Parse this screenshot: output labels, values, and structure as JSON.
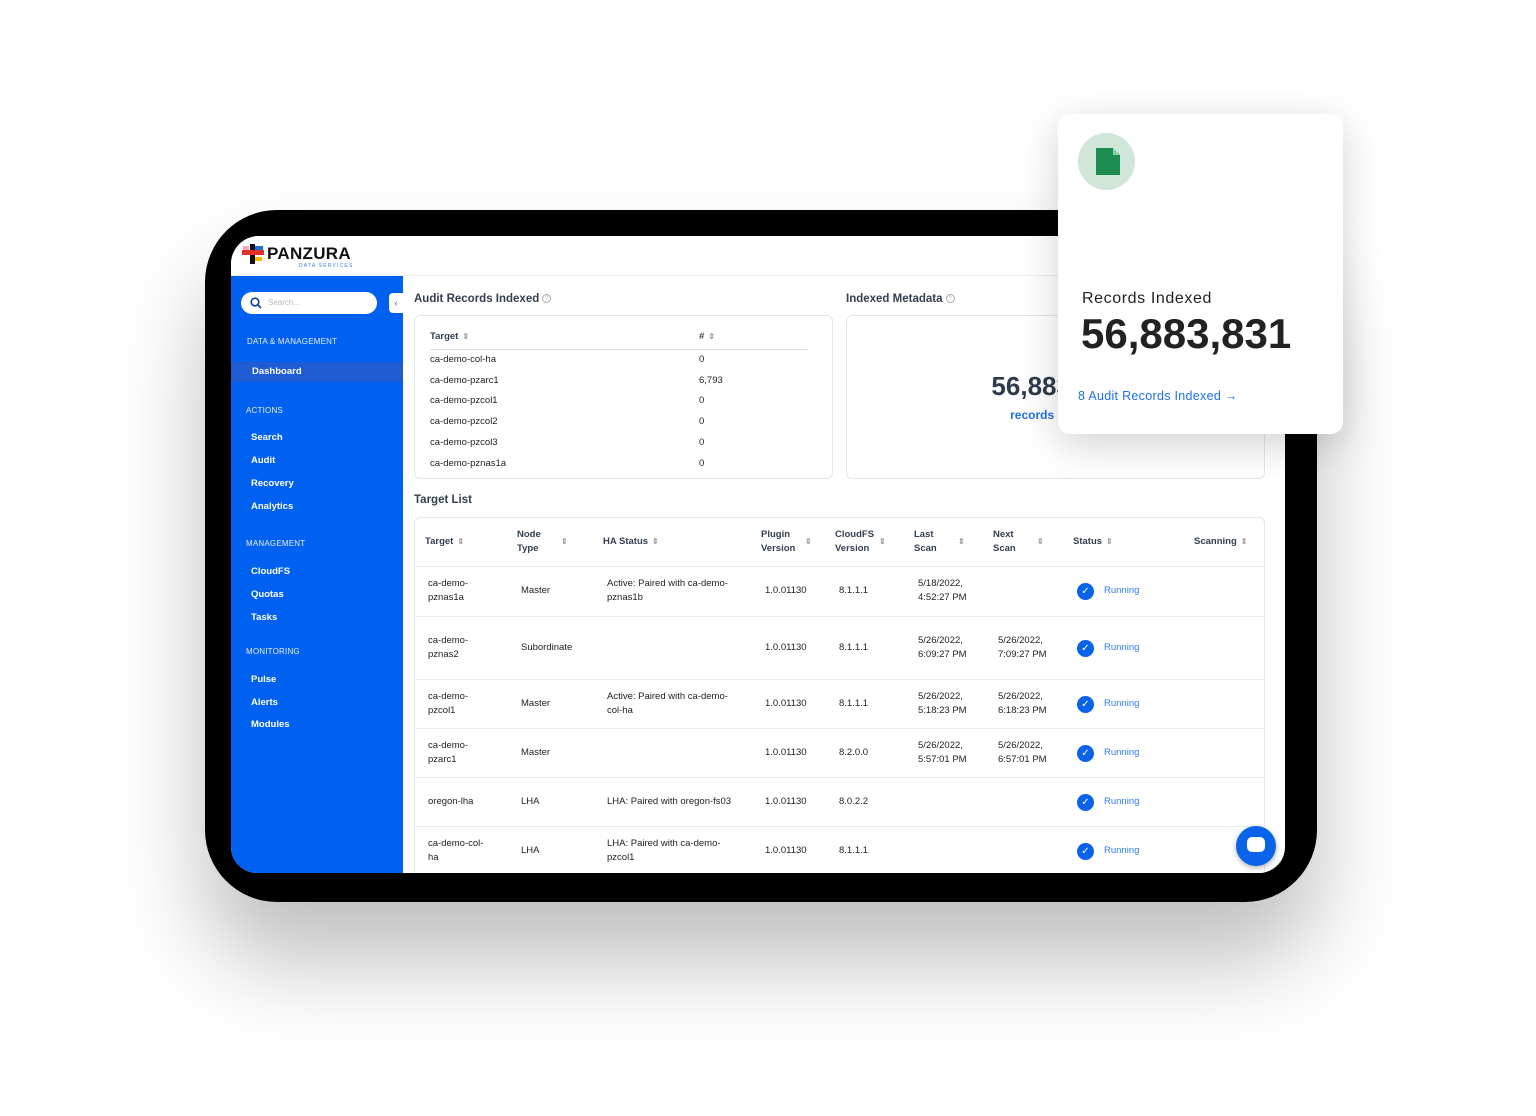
{
  "brand": {
    "name": "PANZURA",
    "tagline": "DATA SERVICES",
    "colors": {
      "sidebar": "#0060f0",
      "accent": "#0a63e8",
      "card_icon_bg": "#cfe6d9",
      "card_icon": "#1e8c4e"
    }
  },
  "sidebar": {
    "search_placeholder": "Search...",
    "collapse_icon": "chevron-left-icon",
    "sections": [
      {
        "label": "DATA & MANAGEMENT",
        "items": [
          {
            "label": "Dashboard",
            "active": true
          }
        ]
      },
      {
        "label": "ACTIONS",
        "items": [
          {
            "label": "Search"
          },
          {
            "label": "Audit"
          },
          {
            "label": "Recovery"
          },
          {
            "label": "Analytics"
          }
        ]
      },
      {
        "label": "MANAGEMENT",
        "items": [
          {
            "label": "CloudFS"
          },
          {
            "label": "Quotas"
          },
          {
            "label": "Tasks"
          }
        ]
      },
      {
        "label": "MONITORING",
        "items": [
          {
            "label": "Pulse"
          },
          {
            "label": "Alerts"
          },
          {
            "label": "Modules"
          }
        ]
      }
    ]
  },
  "audit": {
    "title": "Audit Records Indexed",
    "headers": [
      "Target",
      "#"
    ],
    "rows": [
      [
        "ca-demo-col-ha",
        "0"
      ],
      [
        "ca-demo-pzarc1",
        "6,793"
      ],
      [
        "ca-demo-pzcol1",
        "0"
      ],
      [
        "ca-demo-pzcol2",
        "0"
      ],
      [
        "ca-demo-pzcol3",
        "0"
      ],
      [
        "ca-demo-pznas1a",
        "0"
      ]
    ]
  },
  "metadata": {
    "title": "Indexed Metadata",
    "value": "56,883,831",
    "sub": "records indexed"
  },
  "target_list": {
    "title": "Target List",
    "headers": [
      "Target",
      "Node Type",
      "HA Status",
      "Plugin Version",
      "CloudFS Version",
      "Last Scan",
      "Next Scan",
      "Status",
      "Scanning"
    ],
    "rows": [
      {
        "target": "ca-demo-pznas1a",
        "node": "Master",
        "ha": "Active: Paired with ca-demo-pznas1b",
        "plugin": "1.0.01130",
        "cloudfs": "8.1.1.1",
        "last": "5/18/2022, 4:52:27 PM",
        "next": "",
        "status": "Running"
      },
      {
        "target": "ca-demo-pznas2",
        "node": "Subordinate",
        "ha": "",
        "plugin": "1.0.01130",
        "cloudfs": "8.1.1.1",
        "last": "5/26/2022, 6:09:27 PM",
        "next": "5/26/2022, 7:09:27 PM",
        "status": "Running"
      },
      {
        "target": "ca-demo-pzcol1",
        "node": "Master",
        "ha": "Active: Paired with ca-demo-col-ha",
        "plugin": "1.0.01130",
        "cloudfs": "8.1.1.1",
        "last": "5/26/2022, 5:18:23 PM",
        "next": "5/26/2022, 6:18:23 PM",
        "status": "Running"
      },
      {
        "target": "ca-demo-pzarc1",
        "node": "Master",
        "ha": "",
        "plugin": "1.0.01130",
        "cloudfs": "8.2.0.0",
        "last": "5/26/2022, 5:57:01 PM",
        "next": "5/26/2022, 6:57:01 PM",
        "status": "Running"
      },
      {
        "target": "oregon-lha",
        "node": "LHA",
        "ha": "LHA: Paired with oregon-fs03",
        "plugin": "1.0.01130",
        "cloudfs": "8.0.2.2",
        "last": "",
        "next": "",
        "status": "Running"
      },
      {
        "target": "ca-demo-col-ha",
        "node": "LHA",
        "ha": "LHA: Paired with ca-demo-pzcol1",
        "plugin": "1.0.01130",
        "cloudfs": "8.1.1.1",
        "last": "",
        "next": "",
        "status": "Running"
      }
    ]
  },
  "float_card": {
    "icon": "file-icon",
    "label": "Records Indexed",
    "value": "56,883,831",
    "link": "8 Audit Records Indexed",
    "link_icon": "arrow-right-icon"
  }
}
